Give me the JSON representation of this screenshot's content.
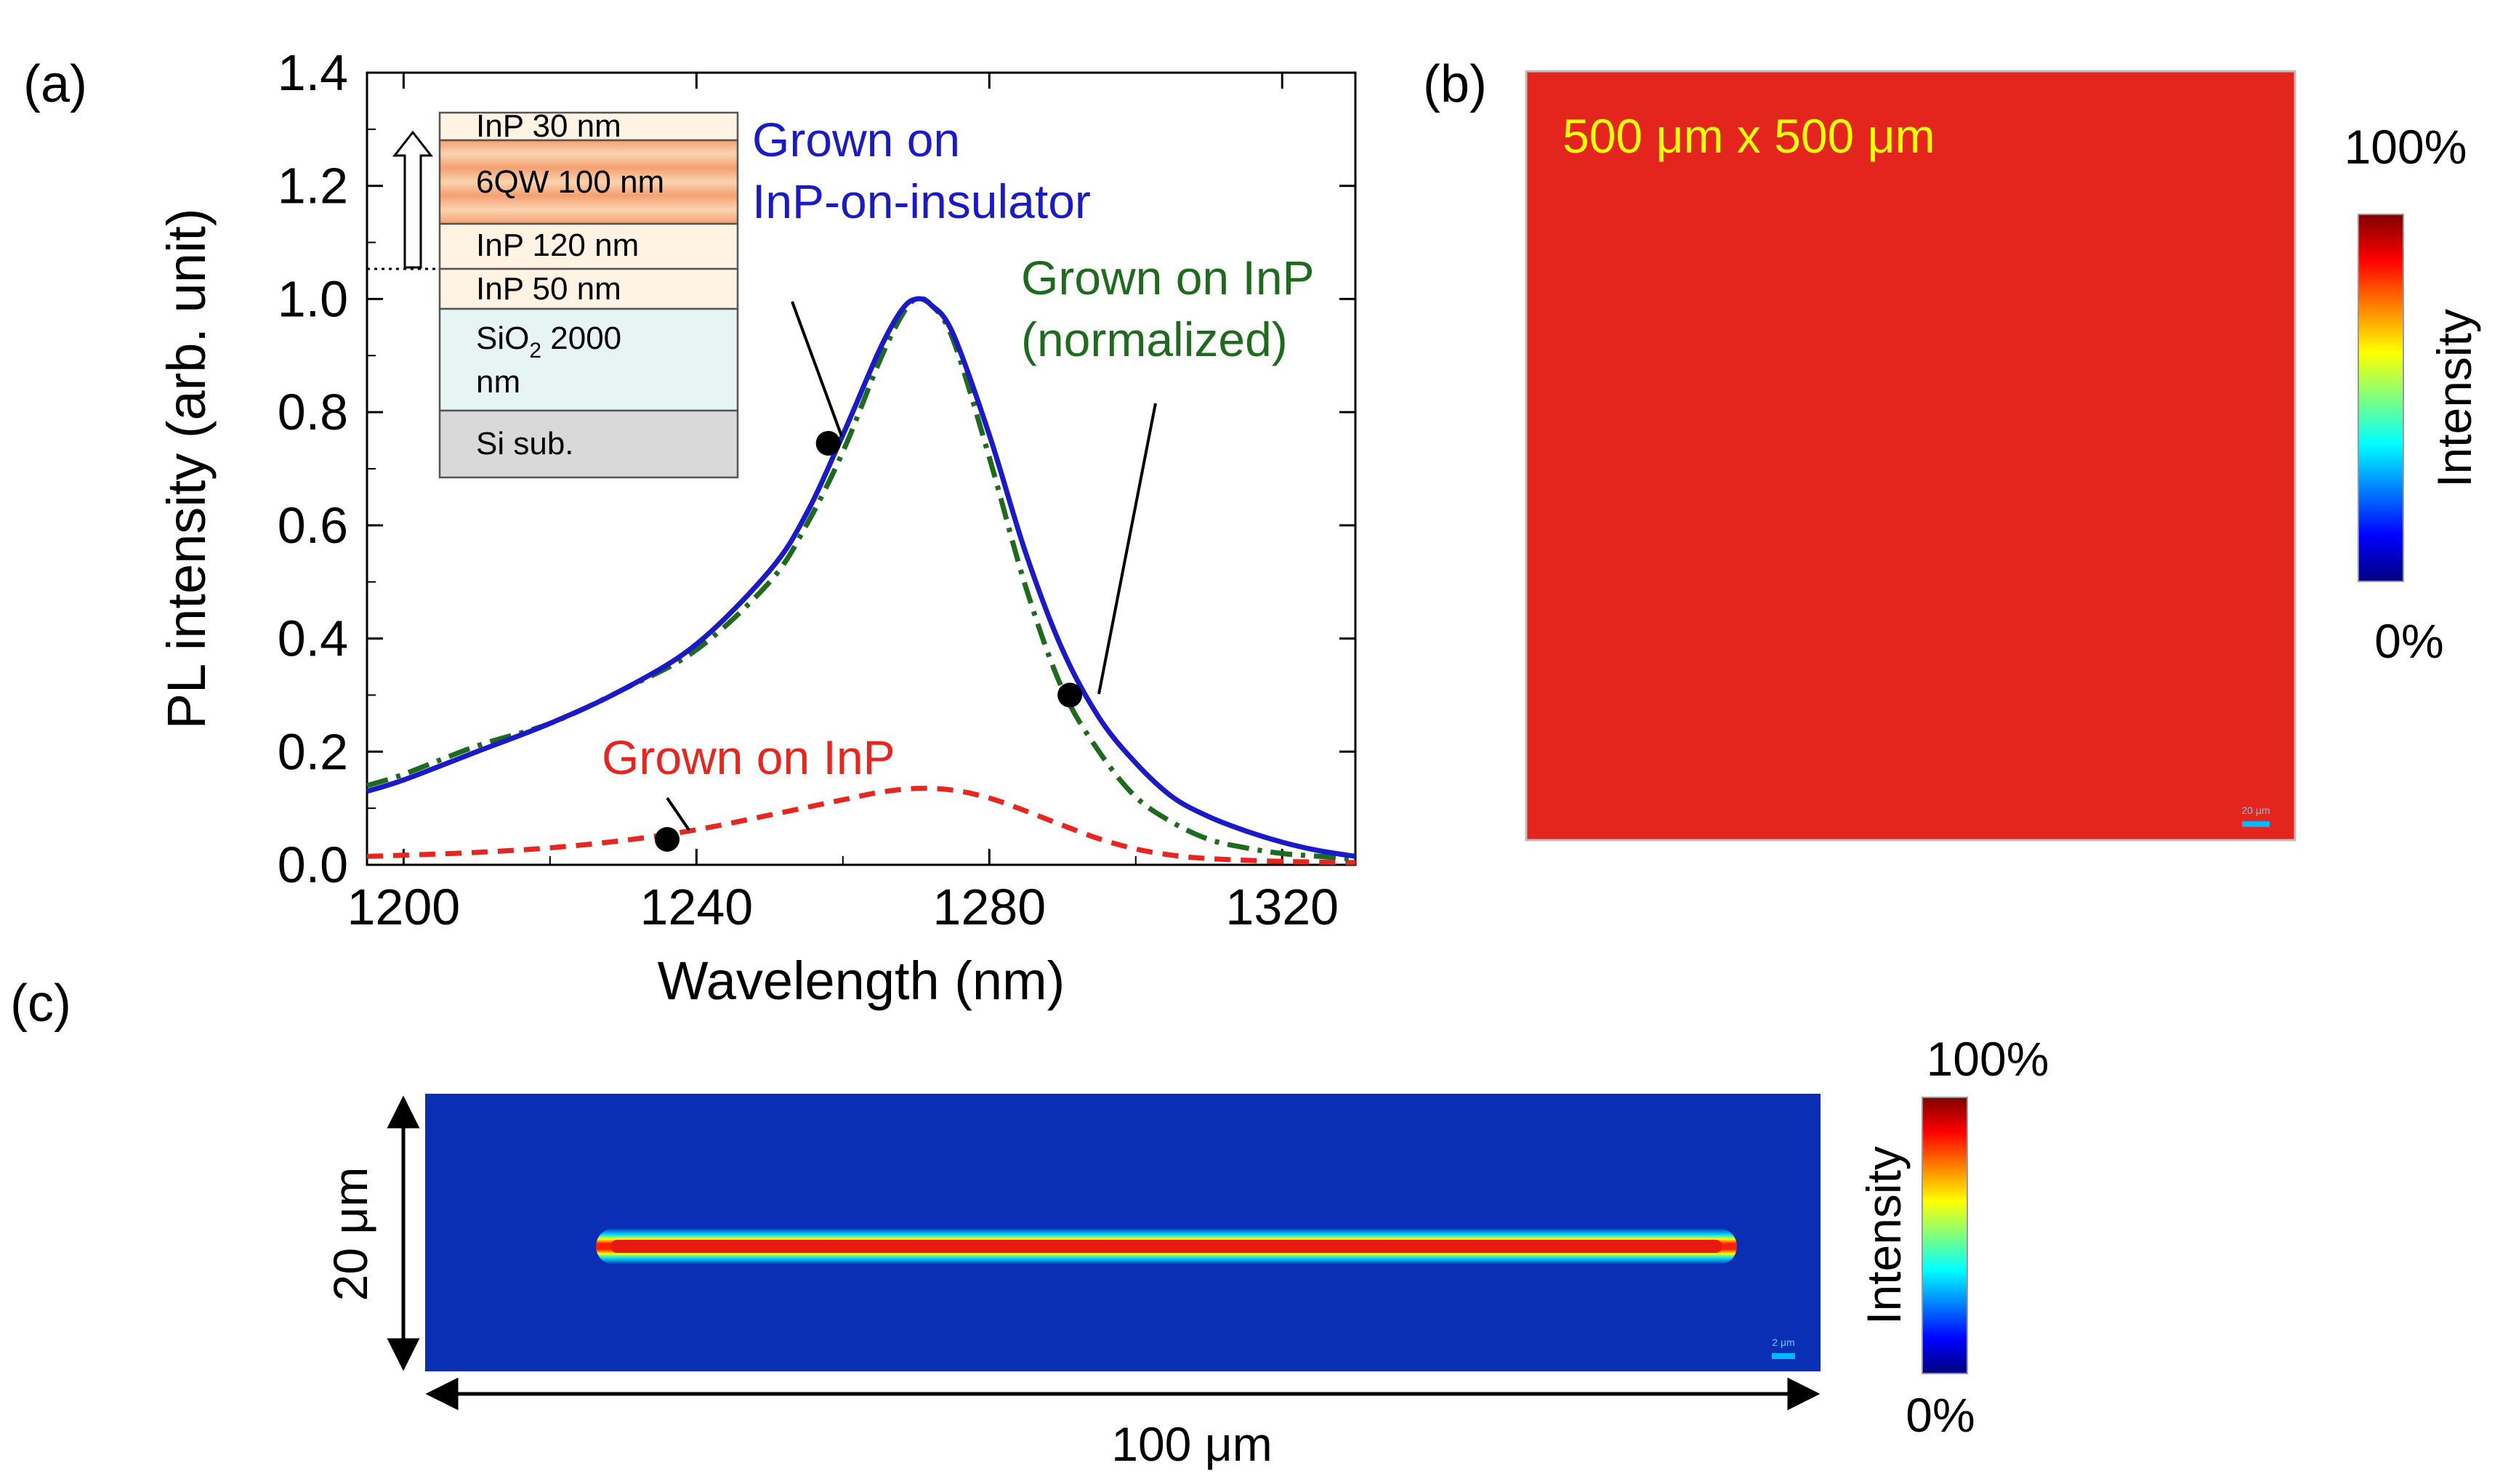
{
  "panels": {
    "a": {
      "label": "(a)"
    },
    "b": {
      "label": "(b)"
    },
    "c": {
      "label": "(c)"
    }
  },
  "chart_data": [
    {
      "type": "line",
      "panel": "(a)",
      "xlabel": "Wavelength (nm)",
      "ylabel": "PL intensity (arb. unit)",
      "xlim": [
        1195,
        1330
      ],
      "ylim": [
        0.0,
        1.4
      ],
      "xticks": [
        1200,
        1240,
        1280,
        1320
      ],
      "xtick_labels": [
        "1200",
        "1240",
        "1280",
        "1320"
      ],
      "yticks": [
        0.0,
        0.2,
        0.4,
        0.6,
        0.8,
        1.0,
        1.2,
        1.4
      ],
      "ytick_labels": [
        "0.0",
        "0.2",
        "0.4",
        "0.6",
        "0.8",
        "1.0",
        "1.2",
        "1.4"
      ],
      "grid": false,
      "series": [
        {
          "name": "Grown on InP-on-insulator",
          "label_lines": [
            "Grown on",
            "InP-on-insulator"
          ],
          "color": "#1a1ac8",
          "style": "solid",
          "x": [
            1195,
            1200,
            1210,
            1220,
            1230,
            1240,
            1250,
            1255,
            1260,
            1265,
            1268,
            1270,
            1272,
            1275,
            1280,
            1285,
            1290,
            1295,
            1300,
            1305,
            1310,
            1315,
            1320,
            1325,
            1330
          ],
          "y": [
            0.13,
            0.15,
            0.2,
            0.25,
            0.31,
            0.39,
            0.52,
            0.62,
            0.76,
            0.91,
            0.98,
            1.0,
            0.99,
            0.94,
            0.76,
            0.55,
            0.38,
            0.26,
            0.18,
            0.12,
            0.085,
            0.06,
            0.04,
            0.025,
            0.015
          ]
        },
        {
          "name": "Grown on InP (normalized)",
          "label_lines": [
            "Grown on InP",
            "(normalized)"
          ],
          "color": "#1e6b1e",
          "style": "dashdot",
          "x": [
            1195,
            1200,
            1210,
            1220,
            1230,
            1240,
            1250,
            1255,
            1260,
            1265,
            1268,
            1270,
            1272,
            1275,
            1280,
            1285,
            1290,
            1295,
            1300,
            1305,
            1310,
            1315,
            1320,
            1325,
            1330
          ],
          "y": [
            0.14,
            0.16,
            0.21,
            0.25,
            0.31,
            0.38,
            0.5,
            0.6,
            0.73,
            0.89,
            0.97,
            1.0,
            0.99,
            0.93,
            0.72,
            0.49,
            0.31,
            0.2,
            0.12,
            0.075,
            0.045,
            0.03,
            0.02,
            0.015,
            0.01
          ]
        },
        {
          "name": "Grown on InP",
          "label_lines": [
            "Grown on InP"
          ],
          "color": "#e8251e",
          "style": "dashed",
          "x": [
            1195,
            1200,
            1210,
            1220,
            1230,
            1240,
            1250,
            1260,
            1265,
            1270,
            1275,
            1280,
            1285,
            1290,
            1295,
            1300,
            1305,
            1310,
            1320,
            1330
          ],
          "y": [
            0.015,
            0.017,
            0.022,
            0.03,
            0.043,
            0.062,
            0.088,
            0.115,
            0.128,
            0.135,
            0.132,
            0.118,
            0.095,
            0.07,
            0.046,
            0.028,
            0.017,
            0.011,
            0.006,
            0.004
          ]
        }
      ],
      "markers": [
        {
          "series": "Grown on InP-on-insulator",
          "x": 1258,
          "y": 0.745
        },
        {
          "series": "Grown on InP (normalized)",
          "x": 1291,
          "y": 0.3
        },
        {
          "series": "Grown on InP",
          "x": 1236,
          "y": 0.045
        }
      ],
      "inset": {
        "layers": [
          {
            "label": "InP 30 nm",
            "fill": "#fff3e3"
          },
          {
            "label": "6QW 100 nm",
            "fill": "#f6b88a"
          },
          {
            "label": "InP 120 nm",
            "fill": "#fff3e3"
          },
          {
            "label": "InP 50 nm",
            "fill": "#fff3e3"
          },
          {
            "label_main": "SiO",
            "label_sub": "2",
            "label_after": " 2000",
            "label_line2": "nm",
            "fill": "#e6f4f4"
          },
          {
            "label": "Si sub.",
            "fill": "#d9d9d9"
          }
        ]
      }
    },
    {
      "type": "heatmap",
      "panel": "(b)",
      "annotation": "500 μm x 500 μm",
      "annotation_color": "#ffff00",
      "fill_color": "#e0231e",
      "scale_bar_label": "20 μm",
      "colorbar": {
        "label": "Intensity",
        "max_label": "100%",
        "min_label": "0%"
      }
    },
    {
      "type": "heatmap",
      "panel": "(c)",
      "background_color": "#0a2fb4",
      "scale_bar_label": "2 μm",
      "height_label": "20 μm",
      "width_label": "100 μm",
      "colorbar": {
        "label": "Intensity",
        "max_label": "100%",
        "min_label": "0%"
      }
    }
  ],
  "colors": {
    "jet": [
      "#00007f",
      "#0000ff",
      "#007fff",
      "#00ffff",
      "#7fff7f",
      "#ffff00",
      "#ff7f00",
      "#ff0000",
      "#7f0000"
    ]
  }
}
